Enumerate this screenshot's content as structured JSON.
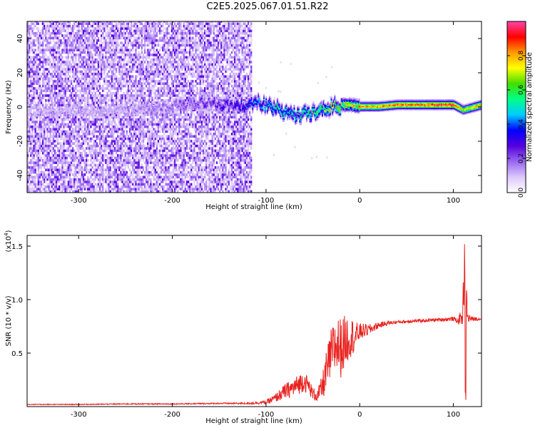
{
  "title": "C2E5.2025.067.01.51.R22",
  "chart_data": [
    {
      "type": "heatmap",
      "xlabel": "Height of straight line (km)",
      "ylabel": "Frequency (Hz)",
      "xlim": [
        -355,
        130
      ],
      "ylim": [
        -50,
        50
      ],
      "xticks": [
        -300,
        -200,
        -100,
        0,
        100
      ],
      "yticks": [
        -40,
        -20,
        0,
        20,
        40
      ],
      "colorbar": {
        "label": "Normalized spectral amplitude",
        "range": [
          0,
          1
        ],
        "ticks": [
          "0.0",
          "0.2",
          "0.4",
          "0.6",
          "0.8"
        ],
        "colors": [
          "#ffffff",
          "#dcc8fa",
          "#9966f2",
          "#5500dd",
          "#0000ff",
          "#00ccff",
          "#00ff88",
          "#44dd00",
          "#ffff00",
          "#ff9900",
          "#ff0000",
          "#ff44aa"
        ]
      },
      "ridge": {
        "x": [
          -355,
          -260,
          -200,
          -170,
          -150,
          -130,
          -110,
          -100,
          -90,
          -80,
          -70,
          -60,
          -50,
          -40,
          -30,
          -20,
          -10,
          0,
          20,
          40,
          60,
          80,
          100,
          110,
          130
        ],
        "frequency": [
          -3,
          -3,
          0,
          3,
          1,
          0,
          2,
          1,
          -1,
          -3,
          -5,
          -4,
          -3,
          -2,
          0,
          1,
          1,
          0,
          0,
          1,
          1,
          1,
          1,
          -2,
          1
        ],
        "amplitude": [
          0.12,
          0.15,
          0.2,
          0.25,
          0.3,
          0.35,
          0.45,
          0.5,
          0.55,
          0.55,
          0.5,
          0.55,
          0.6,
          0.65,
          0.7,
          0.75,
          0.75,
          0.8,
          0.8,
          0.85,
          0.85,
          0.9,
          0.9,
          0.7,
          0.8
        ]
      }
    },
    {
      "type": "line",
      "xlabel": "Height of straight line (km)",
      "ylabel": "SNR (10 * v/v)",
      "multiplier": "(x10",
      "multiplier_exp": "4",
      "xlim": [
        -355,
        130
      ],
      "ylim": [
        0,
        1.6
      ],
      "xticks": [
        -300,
        -200,
        -100,
        0,
        100
      ],
      "yticks": [
        "0.5",
        "1.0",
        "1.5"
      ],
      "series": [
        {
          "color": "#e8211e",
          "x": [
            -355,
            -300,
            -250,
            -200,
            -150,
            -120,
            -100,
            -90,
            -80,
            -70,
            -60,
            -55,
            -50,
            -45,
            -40,
            -35,
            -30,
            -25,
            -20,
            -15,
            -10,
            -5,
            0,
            10,
            20,
            30,
            40,
            60,
            80,
            100,
            105,
            110,
            112,
            115,
            120,
            130
          ],
          "y": [
            0.02,
            0.02,
            0.025,
            0.025,
            0.03,
            0.03,
            0.04,
            0.08,
            0.14,
            0.18,
            0.24,
            0.2,
            0.12,
            0.1,
            0.18,
            0.35,
            0.5,
            0.58,
            0.55,
            0.62,
            0.66,
            0.65,
            0.7,
            0.72,
            0.76,
            0.78,
            0.79,
            0.8,
            0.81,
            0.82,
            0.8,
            0.85,
            1.45,
            0.83,
            0.82,
            0.82
          ],
          "noise": [
            0.004,
            0.004,
            0.005,
            0.005,
            0.006,
            0.008,
            0.02,
            0.04,
            0.07,
            0.09,
            0.1,
            0.08,
            0.06,
            0.06,
            0.12,
            0.2,
            0.25,
            0.28,
            0.28,
            0.24,
            0.2,
            0.14,
            0.08,
            0.05,
            0.03,
            0.02,
            0.015,
            0.015,
            0.015,
            0.02,
            0.03,
            0.1,
            0.4,
            0.05,
            0.02,
            0.015
          ]
        }
      ]
    }
  ]
}
